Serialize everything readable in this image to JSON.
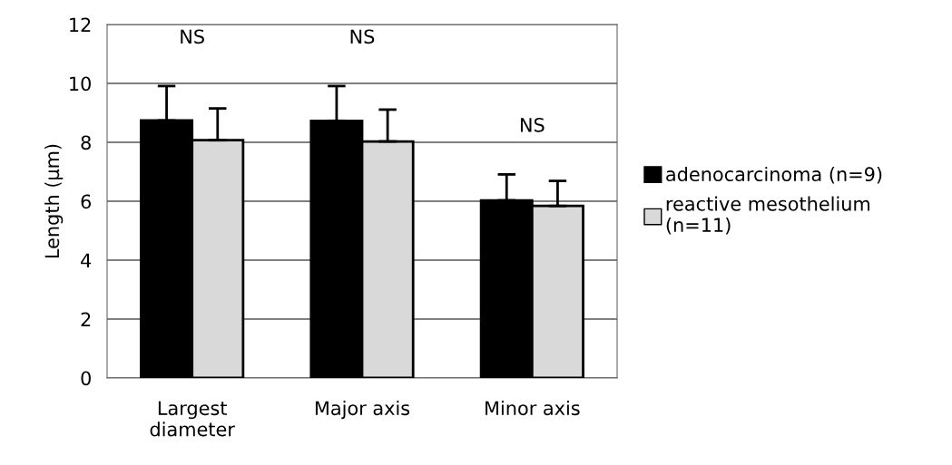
{
  "chart_data": {
    "type": "bar",
    "ylabel": "Length (μm)",
    "categories": [
      "Largest\ndiameter",
      "Major axis",
      "Minor axis"
    ],
    "series": [
      {
        "name": "adenocarcinoma (n=9)",
        "color": "#000000",
        "values": [
          8.74,
          8.73,
          6.03
        ],
        "errors": [
          [
            8.74,
            9.91
          ],
          [
            8.73,
            9.91
          ],
          [
            6.03,
            6.91
          ]
        ]
      },
      {
        "name": "reactive mesothelium\n(n=11)",
        "color": "#d9d9d9",
        "values": [
          8.07,
          8.03,
          5.84
        ],
        "errors": [
          [
            8.07,
            9.15
          ],
          [
            8.03,
            9.11
          ],
          [
            5.84,
            6.69
          ]
        ]
      }
    ],
    "ylim": [
      0,
      12
    ],
    "yticks": [
      0,
      2,
      4,
      6,
      8,
      10,
      12
    ],
    "grid": "y",
    "legend": "right",
    "annotations": [
      "NS",
      "NS",
      "NS"
    ]
  }
}
